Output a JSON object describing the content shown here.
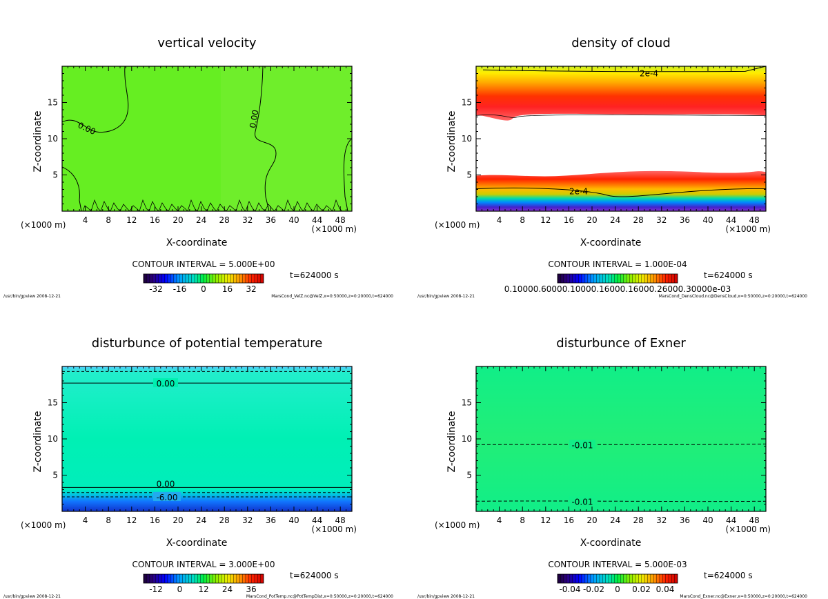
{
  "chart_data": [
    {
      "type": "heatmap",
      "title": "vertical velocity",
      "xlabel": "X-coordinate",
      "ylabel": "Z-coordinate",
      "x_unit": "(×1000 m)",
      "xlim": [
        0,
        50
      ],
      "ylim": [
        0,
        20
      ],
      "xticks": [
        4,
        8,
        12,
        16,
        20,
        24,
        28,
        32,
        36,
        40,
        44,
        48
      ],
      "yticks": [
        5,
        10,
        15
      ],
      "contour_interval": "CONTOUR INTERVAL = 5.000E+00",
      "time": "t=624000 s",
      "colorbar_ticks": [
        "-32",
        "-16",
        "0",
        "16",
        "32"
      ],
      "contour_labels": [
        "0.00",
        "0.00"
      ],
      "footer_left": "/usr/bin/gpview  2008-12-21",
      "footer_right": "MarsCond_VelZ.nc@VelZ,x=0:50000,z=0:20000,t=624000",
      "fill_color": "#66ee22"
    },
    {
      "type": "heatmap",
      "title": "density of cloud",
      "xlabel": "X-coordinate",
      "ylabel": "Z-coordinate",
      "x_unit": "(×1000 m)",
      "xlim": [
        0,
        50
      ],
      "ylim": [
        0,
        20
      ],
      "xticks": [
        4,
        8,
        12,
        16,
        20,
        24,
        28,
        32,
        36,
        40,
        44,
        48
      ],
      "yticks": [
        5,
        10,
        15
      ],
      "contour_interval": "CONTOUR INTERVAL = 1.000E-04",
      "time": "t=624000 s",
      "colorbar_ticks": [
        "0.10000.60000.10000.16000.16000.26000.30000e-03"
      ],
      "contour_labels": [
        "2e-4",
        "2e-4"
      ],
      "footer_left": "/usr/bin/gpview  2008-12-21",
      "footer_right": "MarsCond_DensCloud.nc@DensCloud,x=0:50000,z=0:20000,t=624000"
    },
    {
      "type": "heatmap",
      "title": "disturbunce of potential temperature",
      "xlabel": "X-coordinate",
      "ylabel": "Z-coordinate",
      "x_unit": "(×1000 m)",
      "xlim": [
        0,
        50
      ],
      "ylim": [
        0,
        20
      ],
      "xticks": [
        4,
        8,
        12,
        16,
        20,
        24,
        28,
        32,
        36,
        40,
        44,
        48
      ],
      "yticks": [
        5,
        10,
        15
      ],
      "contour_interval": "CONTOUR INTERVAL = 3.000E+00",
      "time": "t=624000 s",
      "colorbar_ticks": [
        "-12",
        "0",
        "12",
        "24",
        "36"
      ],
      "contour_labels": [
        "0.00",
        "0.00",
        "-6.00"
      ],
      "footer_left": "/usr/bin/gpview  2008-12-21",
      "footer_right": "MarsCond_PotTemp.nc@PotTempDist,x=0:50000,z=0:20000,t=624000",
      "fill_color": "#00f0b0"
    },
    {
      "type": "heatmap",
      "title": "disturbunce of Exner",
      "xlabel": "X-coordinate",
      "ylabel": "Z-coordinate",
      "x_unit": "(×1000 m)",
      "xlim": [
        0,
        50
      ],
      "ylim": [
        0,
        20
      ],
      "xticks": [
        4,
        8,
        12,
        16,
        20,
        24,
        28,
        32,
        36,
        40,
        44,
        48
      ],
      "yticks": [
        5,
        10,
        15
      ],
      "contour_interval": "CONTOUR INTERVAL = 5.000E-03",
      "time": "t=624000 s",
      "colorbar_ticks": [
        "-0.04",
        "-0.02",
        "0",
        "0.02",
        "0.04"
      ],
      "contour_labels": [
        "-0.01",
        "-0.01"
      ],
      "footer_left": "/usr/bin/gpview  2008-12-21",
      "footer_right": "MarsCond_Exner.nc@Exner,x=0:50000,z=0:20000,t=624000",
      "fill_color": "#11ee88"
    }
  ]
}
